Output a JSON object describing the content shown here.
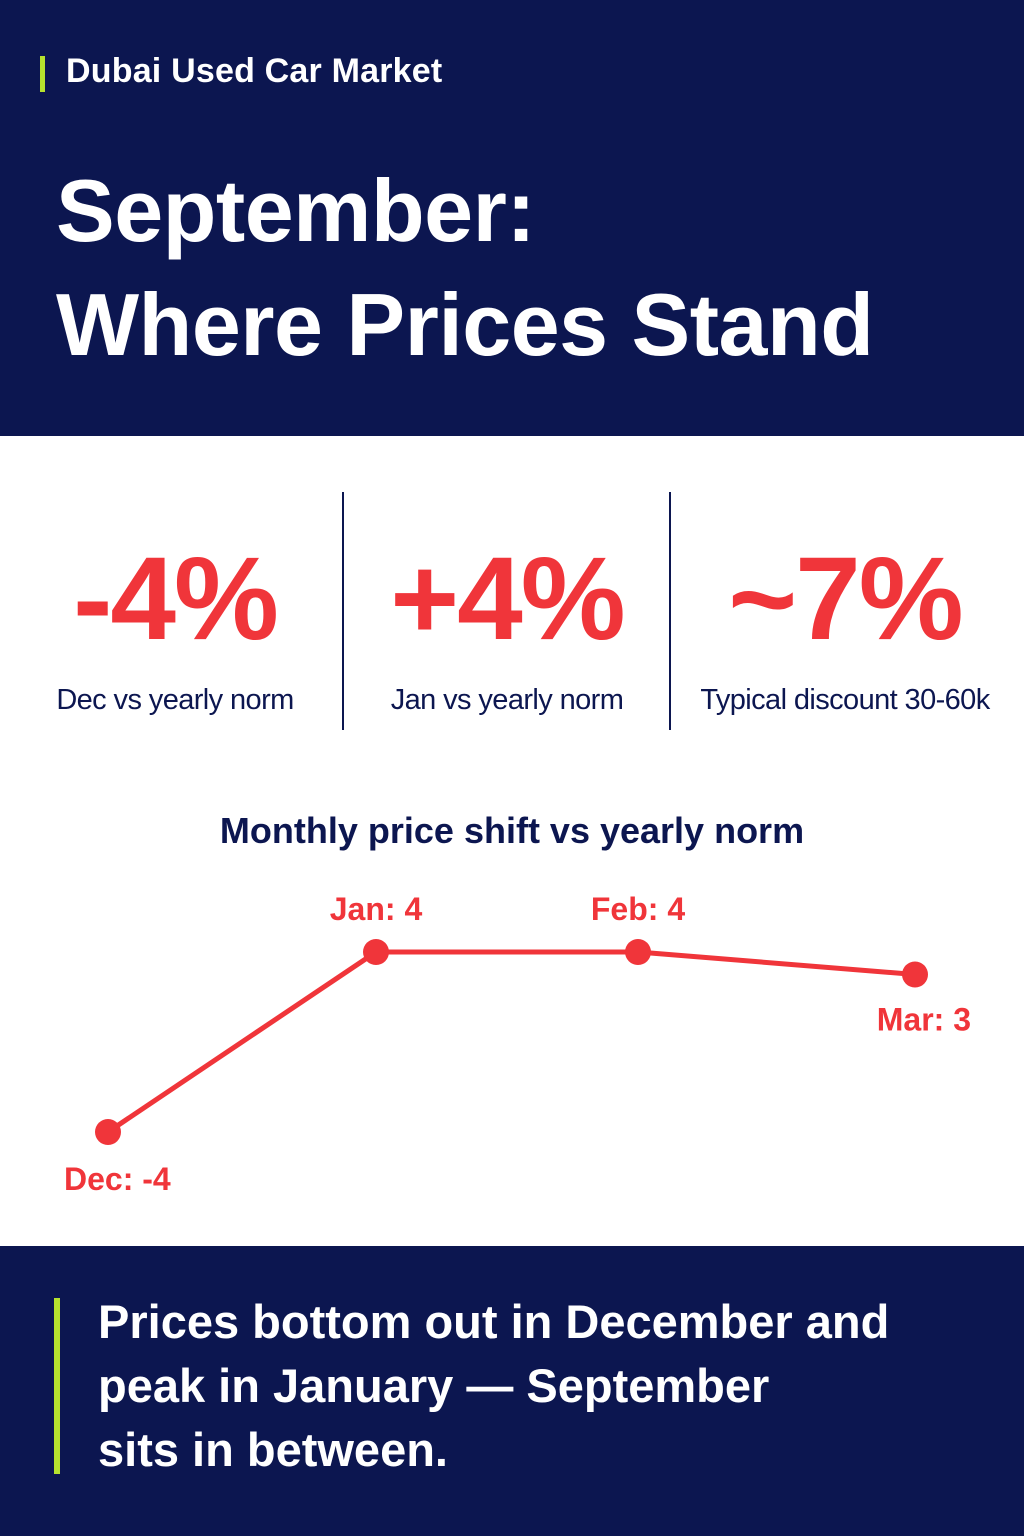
{
  "header": {
    "kicker": "Dubai Used Car Market",
    "title_line1": "September:",
    "title_line2": "Where Prices Stand"
  },
  "stats": [
    {
      "value": "-4%",
      "label": "Dec vs yearly norm"
    },
    {
      "value": "+4%",
      "label": "Jan vs yearly norm"
    },
    {
      "value": "~7%",
      "label": "Typical discount 30-60k"
    }
  ],
  "chart_data": {
    "type": "line",
    "title": "Monthly price shift vs yearly norm",
    "categories": [
      "Dec",
      "Jan",
      "Feb",
      "Mar"
    ],
    "values": [
      -4,
      4,
      4,
      3
    ],
    "point_labels": [
      "Dec: -4",
      "Jan: 4",
      "Feb: 4",
      "Mar: 3"
    ],
    "xlabel": "",
    "ylabel": "",
    "grid": false,
    "color": "#f0353a"
  },
  "footer": {
    "line1": "Prices bottom out in December and",
    "line2": "peak in January — September",
    "line3": "sits in between."
  },
  "colors": {
    "navy": "#0c1650",
    "accent_red": "#f0353a",
    "accent_green": "#b6e22e"
  }
}
